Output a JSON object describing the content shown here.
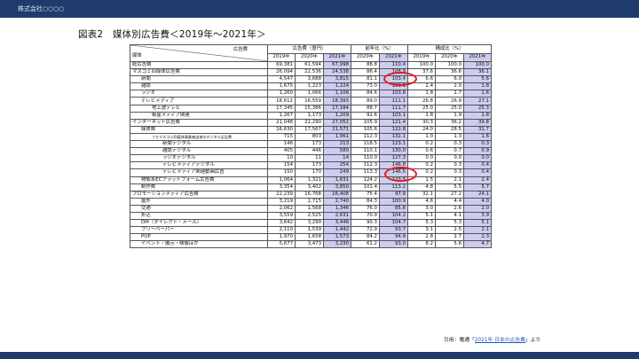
{
  "header": {
    "company": "株式会社○○○○"
  },
  "title": "図表2　媒体別広告費＜2019年～2021年＞",
  "table": {
    "corner_top": "広告費",
    "corner_bottom": "媒体",
    "groups": [
      "広告費（億円）",
      "前年比（%）",
      "構成比（%）"
    ],
    "years": [
      "2019年",
      "2020年",
      "2021年",
      "2020年",
      "2021年",
      "2019年",
      "2020年",
      "2021年"
    ],
    "rows": [
      {
        "label": "総広告費",
        "level": 0,
        "values": [
          "69,381",
          "61,594",
          "67,998",
          "88.8",
          "110.4",
          "100.0",
          "100.0",
          "100.0"
        ]
      },
      {
        "label": "マスコミ四媒体広告費",
        "level": 0,
        "values": [
          "26,094",
          "22,536",
          "24,538",
          "86.4",
          "108.9",
          "37.6",
          "36.6",
          "36.1"
        ]
      },
      {
        "label": "新聞",
        "level": 1,
        "values": [
          "4,547",
          "3,688",
          "3,815",
          "81.1",
          "103.4",
          "6.6",
          "6.0",
          "5.6"
        ]
      },
      {
        "label": "雑誌",
        "level": 1,
        "values": [
          "1,675",
          "1,223",
          "1,224",
          "73.0",
          "100.1",
          "2.4",
          "2.0",
          "1.8"
        ]
      },
      {
        "label": "ラジオ",
        "level": 1,
        "values": [
          "1,260",
          "1,066",
          "1,106",
          "84.6",
          "103.8",
          "1.8",
          "1.7",
          "1.6"
        ]
      },
      {
        "label": "テレビメディア",
        "level": 1,
        "values": [
          "18,612",
          "16,559",
          "18,393",
          "89.0",
          "111.1",
          "26.8",
          "26.9",
          "27.1"
        ]
      },
      {
        "label": "地上波テレビ",
        "level": 2,
        "values": [
          "17,345",
          "15,386",
          "17,184",
          "88.7",
          "111.7",
          "25.0",
          "25.0",
          "25.3"
        ]
      },
      {
        "label": "衛星メディア関連",
        "level": 2,
        "values": [
          "1,267",
          "1,173",
          "1,209",
          "92.6",
          "103.1",
          "1.8",
          "1.9",
          "1.8"
        ]
      },
      {
        "label": "インターネット広告費",
        "level": 0,
        "values": [
          "21,048",
          "22,290",
          "27,052",
          "105.9",
          "121.4",
          "30.3",
          "36.2",
          "39.8"
        ]
      },
      {
        "label": "媒体費",
        "level": 1,
        "values": [
          "16,630",
          "17,567",
          "21,571",
          "105.6",
          "122.8",
          "24.0",
          "28.5",
          "31.7"
        ]
      },
      {
        "label": "うちマスコミ四媒体事業者由来のデジタル広告費",
        "level": 2,
        "values": [
          "715",
          "803",
          "1,061",
          "112.3",
          "132.1",
          "1.0",
          "1.3",
          "1.6"
        ]
      },
      {
        "label": "新聞デジタル",
        "level": 3,
        "values": [
          "146",
          "173",
          "213",
          "118.5",
          "123.1",
          "0.2",
          "0.3",
          "0.3"
        ]
      },
      {
        "label": "雑誌デジタル",
        "level": 3,
        "values": [
          "405",
          "446",
          "580",
          "110.1",
          "130.0",
          "0.6",
          "0.7",
          "0.9"
        ]
      },
      {
        "label": "ラジオデジタル",
        "level": 3,
        "values": [
          "10",
          "11",
          "14",
          "110.0",
          "127.3",
          "0.0",
          "0.0",
          "0.0"
        ]
      },
      {
        "label": "テレビメディアデジタル",
        "level": 3,
        "values": [
          "154",
          "173",
          "254",
          "112.3",
          "146.8",
          "0.2",
          "0.3",
          "0.4"
        ]
      },
      {
        "label": "テレビメディア関連動画広告",
        "level": 3,
        "values": [
          "150",
          "170",
          "249",
          "113.3",
          "146.5",
          "0.2",
          "0.3",
          "0.4"
        ]
      },
      {
        "label": "物販系ECプラットフォーム広告費",
        "level": 1,
        "values": [
          "1,064",
          "1,321",
          "1,631",
          "124.2",
          "123.5",
          "1.5",
          "2.1",
          "2.4"
        ]
      },
      {
        "label": "制作費",
        "level": 1,
        "values": [
          "3,354",
          "3,402",
          "3,850",
          "101.4",
          "113.2",
          "4.8",
          "5.5",
          "5.7"
        ]
      },
      {
        "label": "プロモーションメディア広告費",
        "level": 0,
        "values": [
          "22,239",
          "16,768",
          "16,408",
          "75.4",
          "97.9",
          "32.1",
          "27.2",
          "24.1"
        ]
      },
      {
        "label": "屋外",
        "level": 1,
        "values": [
          "3,219",
          "2,715",
          "2,740",
          "84.3",
          "100.9",
          "4.6",
          "4.4",
          "4.0"
        ]
      },
      {
        "label": "交通",
        "level": 1,
        "values": [
          "2,062",
          "1,568",
          "1,346",
          "76.0",
          "85.8",
          "3.0",
          "2.6",
          "2.0"
        ]
      },
      {
        "label": "折込",
        "level": 1,
        "values": [
          "3,559",
          "2,525",
          "2,631",
          "70.9",
          "104.2",
          "5.1",
          "4.1",
          "3.9"
        ]
      },
      {
        "label": "DM（ダイレクト・メール）",
        "level": 1,
        "values": [
          "3,642",
          "3,290",
          "3,446",
          "90.3",
          "104.7",
          "5.3",
          "5.3",
          "5.1"
        ]
      },
      {
        "label": "フリーペーパー",
        "level": 1,
        "values": [
          "2,110",
          "1,539",
          "1,442",
          "72.9",
          "93.7",
          "3.1",
          "2.5",
          "2.1"
        ]
      },
      {
        "label": "POP",
        "level": 1,
        "values": [
          "1,970",
          "1,658",
          "1,573",
          "84.2",
          "94.9",
          "2.8",
          "2.7",
          "2.3"
        ]
      },
      {
        "label": "イベント・展示・映像ほか",
        "level": 1,
        "values": [
          "5,677",
          "3,473",
          "3,230",
          "61.2",
          "93.0",
          "8.2",
          "5.6",
          "4.7"
        ]
      }
    ]
  },
  "source": {
    "prefix": "引用：電通「",
    "link": "2021年 日本の広告費",
    "suffix": "」より"
  },
  "colors": {
    "header_bar": "#1f3b6e",
    "highlight_column": "#cdcdf0",
    "annotation_circle": "#e5191e"
  }
}
